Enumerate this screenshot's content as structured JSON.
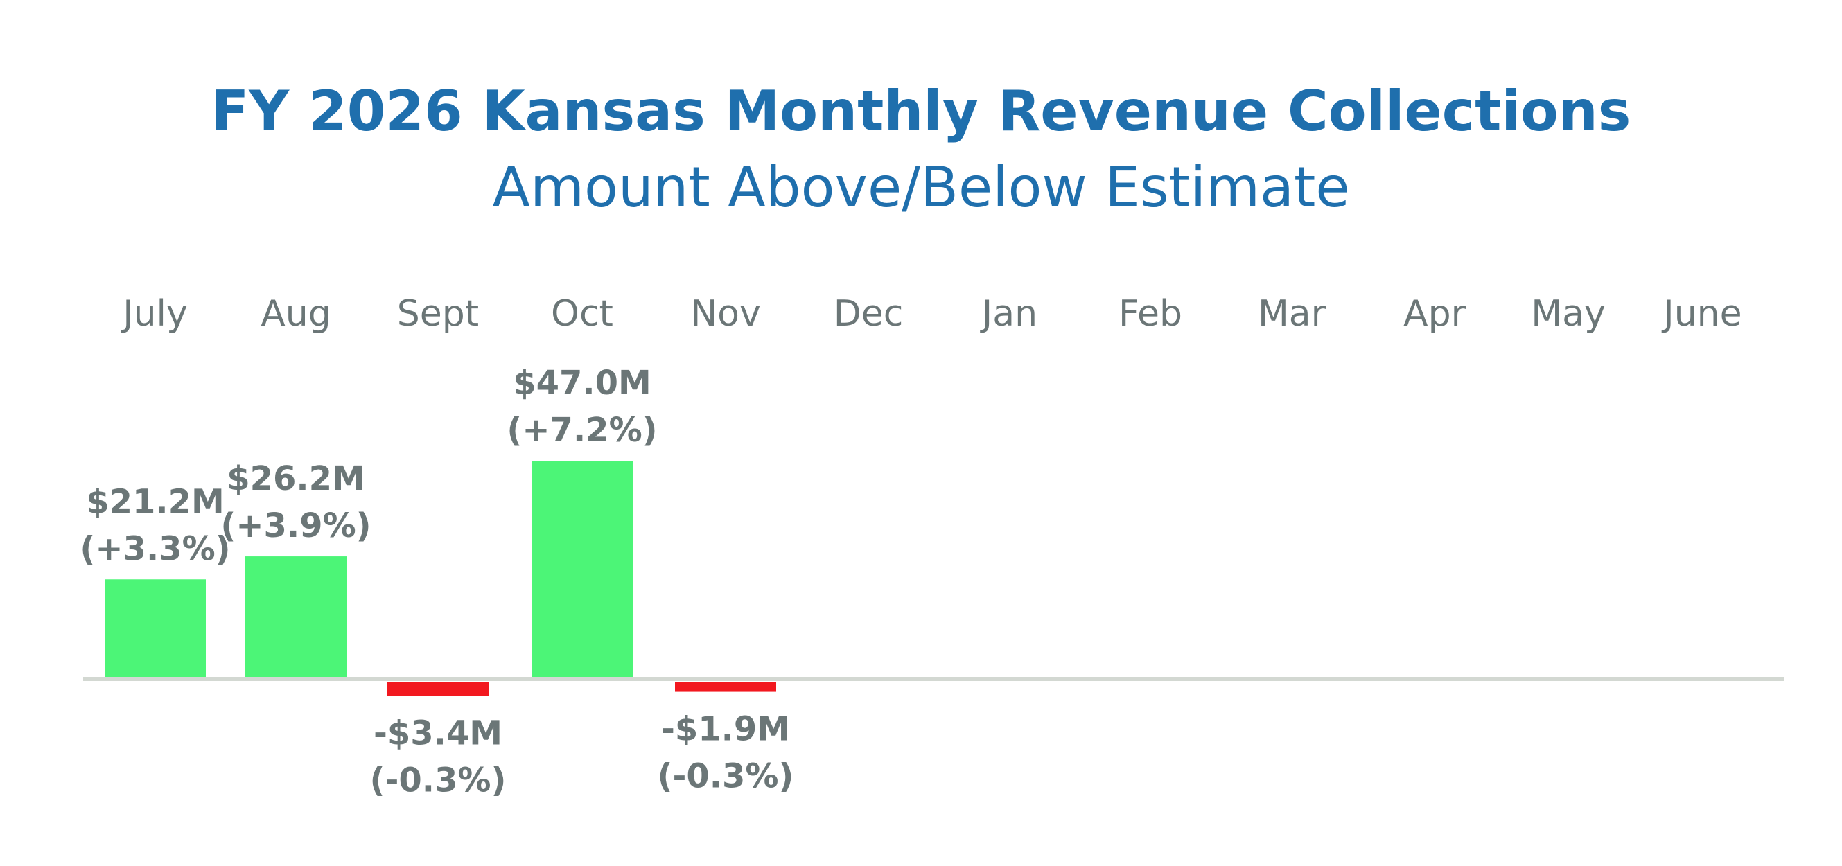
{
  "chart_data": {
    "type": "bar",
    "title": "FY 2026 Kansas Monthly Revenue Collections",
    "subtitle": "Amount Above/Below Estimate",
    "xlabel": "",
    "ylabel": "",
    "unit": "$M",
    "categories": [
      "July",
      "Aug",
      "Sept",
      "Oct",
      "Nov",
      "Dec",
      "Jan",
      "Feb",
      "Mar",
      "Apr",
      "May",
      "June"
    ],
    "values": [
      21.2,
      26.2,
      -3.4,
      47.0,
      -1.9,
      null,
      null,
      null,
      null,
      null,
      null,
      null
    ],
    "percent_change": [
      "+3.3%",
      "+3.9%",
      "-0.3%",
      "+7.2%",
      "-0.3%",
      null,
      null,
      null,
      null,
      null,
      null,
      null
    ],
    "value_labels": [
      "$21.2M",
      "$26.2M",
      "-$3.4M",
      "$47.0M",
      "-$1.9M",
      null,
      null,
      null,
      null,
      null,
      null,
      null
    ],
    "percent_labels": [
      "(+3.3%)",
      "(+3.9%)",
      "(-0.3%)",
      "(+7.2%)",
      "(-0.3%)",
      null,
      null,
      null,
      null,
      null,
      null,
      null
    ],
    "ylim": [
      -5,
      50
    ],
    "grid": false,
    "legend": "none",
    "colors": {
      "title": "#1f6fad",
      "subtitle": "#1f6fad",
      "positive": "#4cf577",
      "negative": "#f2181f",
      "axis": "#d3d8d2",
      "label": "#6b7677"
    }
  }
}
